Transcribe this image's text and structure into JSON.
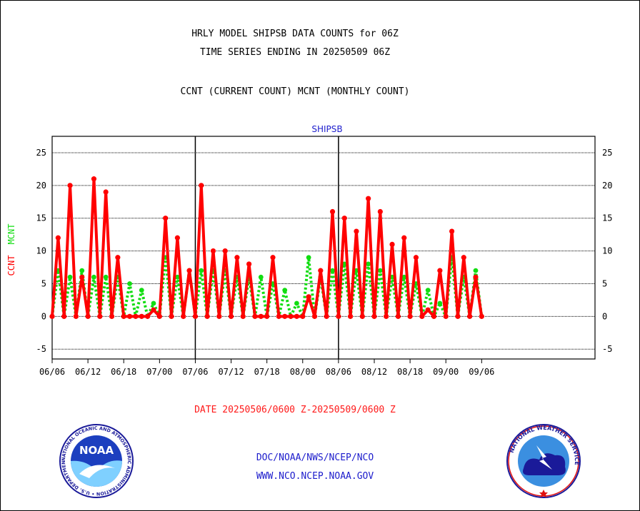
{
  "titles": {
    "line1": "HRLY MODEL SHIPSB DATA COUNTS for 06Z",
    "line2": "TIME SERIES ENDING IN 20250509 06Z",
    "line3": "CCNT (CURRENT COUNT) MCNT (MONTHLY COUNT)"
  },
  "chart_data": {
    "type": "line",
    "title": "SHIPSB",
    "ylabel": [
      "CCNT",
      "MCNT"
    ],
    "ylim": [
      -6.5,
      27.5
    ],
    "yticks": [
      -5,
      0,
      5,
      10,
      15,
      20,
      25
    ],
    "x_range": [
      0,
      91
    ],
    "x_ticks": [
      {
        "value": 0,
        "label": "06/06"
      },
      {
        "value": 6,
        "label": "06/12"
      },
      {
        "value": 12,
        "label": "06/18"
      },
      {
        "value": 18,
        "label": "07/00"
      },
      {
        "value": 24,
        "label": "07/06"
      },
      {
        "value": 30,
        "label": "07/12"
      },
      {
        "value": 36,
        "label": "07/18"
      },
      {
        "value": 42,
        "label": "08/00"
      },
      {
        "value": 48,
        "label": "08/06"
      },
      {
        "value": 54,
        "label": "08/12"
      },
      {
        "value": 60,
        "label": "08/18"
      },
      {
        "value": 66,
        "label": "09/00"
      },
      {
        "value": 72,
        "label": "09/06"
      }
    ],
    "day_separators": [
      24,
      48
    ],
    "grid": true,
    "series": [
      {
        "name": "CCNT",
        "color": "#ff0000",
        "x": [
          0,
          1,
          2,
          3,
          4,
          5,
          6,
          7,
          8,
          9,
          10,
          11,
          12,
          13,
          14,
          15,
          16,
          17,
          18,
          19,
          20,
          21,
          22,
          23,
          24,
          25,
          26,
          27,
          28,
          29,
          30,
          31,
          32,
          33,
          34,
          35,
          36,
          37,
          38,
          39,
          40,
          41,
          42,
          43,
          44,
          45,
          46,
          47,
          48,
          49,
          50,
          51,
          52,
          53,
          54,
          55,
          56,
          57,
          58,
          59,
          60,
          61,
          62,
          63,
          64,
          65,
          66,
          67,
          68,
          69,
          70,
          71,
          72
        ],
        "values": [
          0,
          12,
          0,
          20,
          0,
          6,
          0,
          21,
          0,
          19,
          0,
          9,
          0,
          0,
          0,
          0,
          0,
          1,
          0,
          15,
          0,
          12,
          0,
          7,
          0,
          20,
          0,
          10,
          0,
          10,
          0,
          9,
          0,
          8,
          0,
          0,
          0,
          9,
          0,
          0,
          0,
          0,
          0,
          3,
          0,
          7,
          0,
          16,
          0,
          15,
          0,
          13,
          0,
          18,
          0,
          16,
          0,
          11,
          0,
          12,
          0,
          9,
          0,
          1,
          0,
          7,
          0,
          13,
          0,
          9,
          0,
          6,
          0
        ]
      },
      {
        "name": "MCNT",
        "color": "#11dd11",
        "x": [
          0,
          1,
          2,
          3,
          4,
          5,
          6,
          7,
          8,
          9,
          10,
          11,
          12,
          13,
          14,
          15,
          16,
          17,
          18,
          19,
          20,
          21,
          22,
          23,
          24,
          25,
          26,
          27,
          28,
          29,
          30,
          31,
          32,
          33,
          34,
          35,
          36,
          37,
          38,
          39,
          40,
          41,
          42,
          43,
          44,
          45,
          46,
          47,
          48,
          49,
          50,
          51,
          52,
          53,
          54,
          55,
          56,
          57,
          58,
          59,
          60,
          61,
          62,
          63,
          64,
          65,
          66,
          67,
          68,
          69,
          70,
          71,
          72
        ],
        "values": [
          0,
          7,
          0,
          6,
          0,
          7,
          0,
          6,
          0,
          6,
          0,
          6,
          0,
          5,
          0,
          4,
          0,
          2,
          0,
          9,
          0,
          6,
          0,
          7,
          0,
          7,
          0,
          7,
          0,
          7,
          0,
          6,
          0,
          6,
          0,
          6,
          0,
          5,
          0,
          4,
          0,
          2,
          0,
          9,
          0,
          6,
          0,
          7,
          0,
          8,
          0,
          7,
          0,
          8,
          0,
          7,
          0,
          6,
          0,
          6,
          0,
          5,
          0,
          4,
          0,
          2,
          0,
          9,
          0,
          6,
          0,
          7,
          0
        ]
      }
    ]
  },
  "date_range": "DATE 20250506/0600 Z-20250509/0600 Z",
  "footer": {
    "line1": "DOC/NOAA/NWS/NCEP/NCO",
    "line2": "WWW.NCO.NCEP.NOAA.GOV"
  },
  "logos": {
    "noaa_text": "NOAA",
    "noaa_ring": "NATIONAL OCEANIC AND ATMOSPHERIC ADMINISTRATION • U.S. DEPARTMENT OF COMMERCE •",
    "nws_ring": "NATIONAL WEATHER SERVICE"
  }
}
